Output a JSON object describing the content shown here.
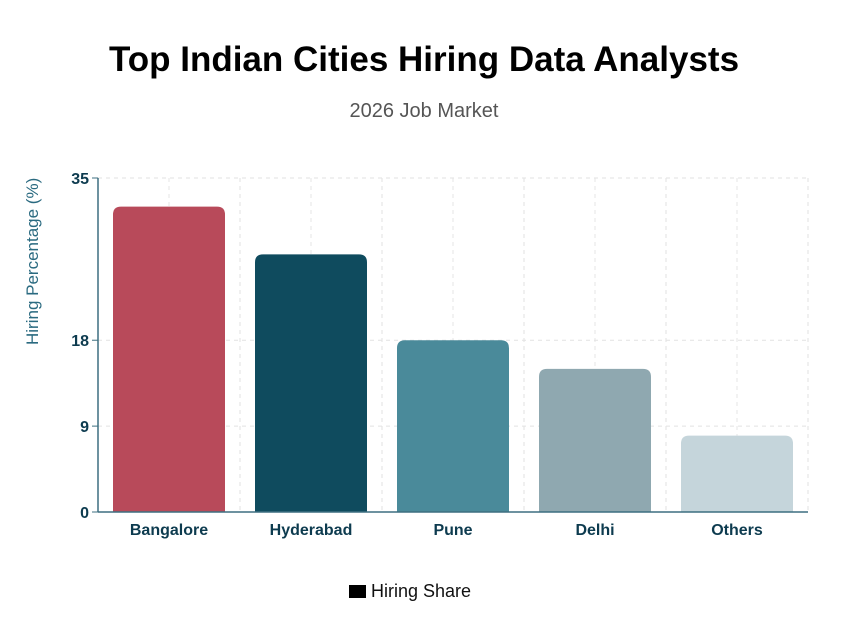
{
  "chart_data": {
    "type": "bar",
    "title": "Top Indian Cities Hiring Data Analysts",
    "subtitle": "2026 Job Market",
    "xlabel": "",
    "ylabel": "Hiring Percentage (%)",
    "categories": [
      "Bangalore",
      "Hyderabad",
      "Pune",
      "Delhi",
      "Others"
    ],
    "values": [
      32,
      27,
      18,
      15,
      8
    ],
    "colors": [
      "#B84A5A",
      "#0F4B5E",
      "#4A8A9A",
      "#8FA8B0",
      "#C5D5DB"
    ],
    "ylim": [
      0,
      35
    ],
    "yticks": [
      0,
      9,
      18,
      35
    ],
    "grid": true,
    "legend": {
      "label": "Hiring Share",
      "placement": "bottom-center"
    }
  }
}
